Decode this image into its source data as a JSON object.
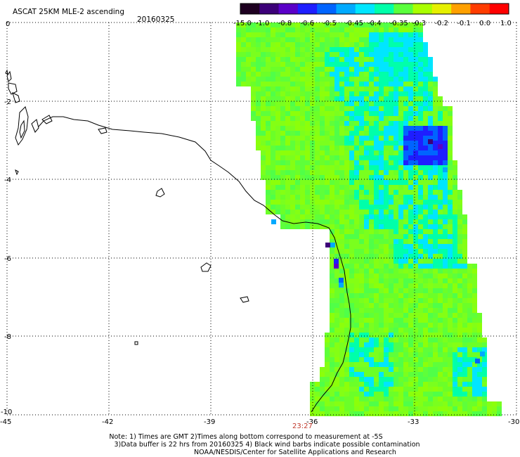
{
  "header": {
    "title": "ASCAT 25KM MLE-2 ascending",
    "date": "20160325"
  },
  "colorbar": {
    "labels": [
      "-15.0",
      "-1.0",
      "-0.8",
      "-0.6",
      "-0.5",
      "-0.45",
      "-0.4",
      "-0.35",
      "-0.3",
      "-0.2",
      "-0.1",
      "0.0",
      "1.0"
    ],
    "colors": [
      "#1e0020",
      "#3c0078",
      "#5a00c8",
      "#1e1eff",
      "#0064ff",
      "#00aaff",
      "#00e6ff",
      "#00ffaa",
      "#5aff3c",
      "#aaff00",
      "#e6f000",
      "#ffa000",
      "#ff3c00",
      "#ff0000"
    ]
  },
  "axes": {
    "x_ticks": [
      "-45",
      "-42",
      "-39",
      "-36",
      "-33",
      "-30"
    ],
    "y_ticks": [
      "0",
      "-2",
      "-4",
      "-6",
      "-8",
      "-10"
    ]
  },
  "time_label": "23:27",
  "notes": {
    "line1": "Note: 1) Times are GMT 2)Times along bottom correspond to measurement at -5S",
    "line2": "3)Data buffer is 22 hrs from 20160325 4) Black wind barbs indicate possible contamination",
    "line3": "NOAA/NESDIS/Center for Satellite Applications and Research"
  }
}
